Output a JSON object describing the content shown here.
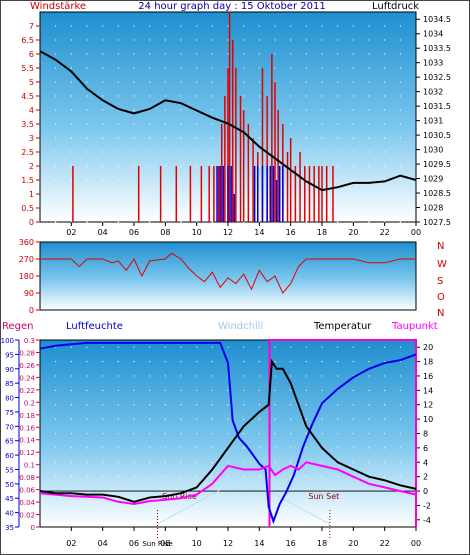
{
  "title": "24 hour graph day : 15 Oktober 2011",
  "chart_data": [
    {
      "type": "line",
      "labels": {
        "left": "Windstärke",
        "right": "Luftdruck"
      },
      "x_ticks": [
        "02",
        "04",
        "06",
        "08",
        "10",
        "12",
        "14",
        "16",
        "18",
        "20",
        "22",
        "00"
      ],
      "x_range_hours": [
        0,
        24
      ],
      "y_left": {
        "ticks": [
          "0",
          "0.5",
          "1",
          "1.5",
          "2",
          "2.5",
          "3",
          "3.5",
          "4",
          "4.5",
          "5",
          "5.5",
          "6",
          "6.5",
          "7"
        ],
        "range": [
          0,
          7.5
        ]
      },
      "y_right": {
        "ticks": [
          "1027.5",
          "1028",
          "1028.5",
          "1029",
          "1029.5",
          "1030",
          "1030.5",
          "1031",
          "1031.5",
          "1032",
          "1032.5",
          "1033",
          "1033.5",
          "1034",
          "1034.5"
        ],
        "range": [
          1027.5,
          1034.75
        ]
      },
      "series": [
        {
          "name": "Luftdruck",
          "color": "#000000",
          "axis": "right",
          "points": [
            [
              0,
              1033.4
            ],
            [
              1,
              1033.1
            ],
            [
              2,
              1032.7
            ],
            [
              3,
              1032.1
            ],
            [
              4,
              1031.7
            ],
            [
              5,
              1031.4
            ],
            [
              6,
              1031.25
            ],
            [
              7,
              1031.4
            ],
            [
              8,
              1031.7
            ],
            [
              9,
              1031.6
            ],
            [
              10,
              1031.35
            ],
            [
              11,
              1031.1
            ],
            [
              12,
              1030.9
            ],
            [
              13,
              1030.6
            ],
            [
              14,
              1030.1
            ],
            [
              15,
              1029.7
            ],
            [
              16,
              1029.3
            ],
            [
              17,
              1028.9
            ],
            [
              18,
              1028.6
            ],
            [
              19,
              1028.7
            ],
            [
              20,
              1028.85
            ],
            [
              21,
              1028.85
            ],
            [
              22,
              1028.9
            ],
            [
              23,
              1029.1
            ],
            [
              24,
              1028.95
            ]
          ]
        },
        {
          "name": "Windböen",
          "color": "#e00000",
          "axis": "left",
          "bars": [
            [
              2.1,
              2
            ],
            [
              6.3,
              2
            ],
            [
              7.7,
              2
            ],
            [
              8.7,
              2
            ],
            [
              9.6,
              2
            ],
            [
              10.3,
              2
            ],
            [
              10.8,
              2
            ],
            [
              11.1,
              2
            ],
            [
              11.4,
              2
            ],
            [
              11.6,
              3.5
            ],
            [
              11.8,
              4.5
            ],
            [
              12.0,
              5.5
            ],
            [
              12.1,
              7.5
            ],
            [
              12.3,
              6.5
            ],
            [
              12.5,
              5.5
            ],
            [
              12.8,
              4.5
            ],
            [
              13.0,
              4
            ],
            [
              13.3,
              3.5
            ],
            [
              13.6,
              3
            ],
            [
              13.9,
              2.5
            ],
            [
              14.2,
              5.5
            ],
            [
              14.5,
              4.5
            ],
            [
              14.8,
              6
            ],
            [
              15.0,
              5
            ],
            [
              15.2,
              4
            ],
            [
              15.5,
              3.5
            ],
            [
              15.8,
              2.5
            ],
            [
              16.0,
              3
            ],
            [
              16.3,
              2
            ],
            [
              16.6,
              2.5
            ],
            [
              16.9,
              2
            ],
            [
              17.2,
              2
            ],
            [
              17.5,
              2
            ],
            [
              17.8,
              2
            ],
            [
              18.0,
              2
            ],
            [
              18.3,
              2
            ],
            [
              18.7,
              2
            ]
          ]
        },
        {
          "name": "Wind",
          "color": "#0000dd",
          "axis": "left",
          "bars": [
            [
              11.3,
              2
            ],
            [
              11.5,
              2
            ],
            [
              11.7,
              2
            ],
            [
              12.0,
              2
            ],
            [
              12.2,
              2
            ],
            [
              12.4,
              1
            ],
            [
              13.7,
              2
            ],
            [
              13.9,
              2
            ],
            [
              14.2,
              2
            ],
            [
              14.5,
              2
            ],
            [
              14.7,
              2
            ],
            [
              14.9,
              2
            ],
            [
              15.1,
              1.5
            ],
            [
              15.3,
              2
            ],
            [
              15.5,
              2
            ]
          ]
        }
      ]
    },
    {
      "type": "line",
      "labels": {
        "compass": [
          "N",
          "W",
          "S",
          "O",
          "N"
        ]
      },
      "y_left": {
        "ticks": [
          "0",
          "90",
          "180",
          "270",
          "360"
        ],
        "range": [
          0,
          360
        ]
      },
      "series": [
        {
          "name": "Windrichtung",
          "color": "#e00000",
          "points": [
            [
              0,
              270
            ],
            [
              1,
              270
            ],
            [
              2,
              270
            ],
            [
              2.5,
              230
            ],
            [
              3,
              270
            ],
            [
              4,
              270
            ],
            [
              4.6,
              250
            ],
            [
              5,
              260
            ],
            [
              5.5,
              210
            ],
            [
              6,
              270
            ],
            [
              6.5,
              180
            ],
            [
              7,
              260
            ],
            [
              8,
              270
            ],
            [
              8.4,
              300
            ],
            [
              9,
              270
            ],
            [
              9.5,
              220
            ],
            [
              10,
              180
            ],
            [
              10.5,
              150
            ],
            [
              11,
              200
            ],
            [
              11.5,
              120
            ],
            [
              12,
              170
            ],
            [
              12.5,
              140
            ],
            [
              13,
              190
            ],
            [
              13.5,
              110
            ],
            [
              14,
              210
            ],
            [
              14.5,
              150
            ],
            [
              15,
              180
            ],
            [
              15.5,
              90
            ],
            [
              16,
              140
            ],
            [
              16.5,
              230
            ],
            [
              17,
              270
            ],
            [
              18,
              270
            ],
            [
              19,
              270
            ],
            [
              20,
              270
            ],
            [
              21,
              250
            ],
            [
              22,
              250
            ],
            [
              23,
              270
            ],
            [
              24,
              270
            ]
          ]
        }
      ]
    },
    {
      "type": "line",
      "labels": {
        "regen": "Regen",
        "feuchte": "Luftfeuchte",
        "windchill": "Windchill",
        "temperatur": "Temperatur",
        "taupunkt": "Taupunkt",
        "sunrise": "Sun Rise",
        "sunset": "Sun Set"
      },
      "y_humidity": {
        "ticks": [
          "35",
          "40",
          "45",
          "50",
          "55",
          "60",
          "65",
          "70",
          "75",
          "80",
          "85",
          "90",
          "95",
          "100"
        ],
        "range": [
          35,
          100
        ]
      },
      "y_rain": {
        "ticks": [
          "0",
          "0.02",
          "0.04",
          "0.06",
          "0.08",
          "0.1",
          "0.12",
          "0.14",
          "0.16",
          "0.18",
          "0.2",
          "0.22",
          "0.24",
          "0.26",
          "0.28",
          "0.3"
        ],
        "range": [
          0,
          0.3
        ]
      },
      "y_temp": {
        "ticks": [
          "-4",
          "-2",
          "0",
          "2",
          "4",
          "6",
          "8",
          "10",
          "12",
          "14",
          "16",
          "18",
          "20"
        ],
        "range": [
          -5,
          21
        ]
      },
      "sun_rise_hour": 7.5,
      "sun_set_hour": 18.5,
      "series": [
        {
          "name": "Luftfeuchte",
          "color": "#0000ee",
          "axis": "humidity",
          "points": [
            [
              0,
              97
            ],
            [
              1,
              98
            ],
            [
              2,
              98.5
            ],
            [
              3,
              99
            ],
            [
              4,
              99
            ],
            [
              6,
              99
            ],
            [
              8,
              99
            ],
            [
              10,
              99
            ],
            [
              11,
              99
            ],
            [
              11.5,
              99
            ],
            [
              12,
              92
            ],
            [
              12.3,
              72
            ],
            [
              12.7,
              66
            ],
            [
              13.2,
              63
            ],
            [
              13.6,
              60
            ],
            [
              14,
              57
            ],
            [
              14.4,
              55
            ],
            [
              14.6,
              42
            ],
            [
              14.9,
              37
            ],
            [
              15.3,
              43
            ],
            [
              15.7,
              47
            ],
            [
              16.2,
              53
            ],
            [
              16.8,
              63
            ],
            [
              17.4,
              71
            ],
            [
              18,
              78
            ],
            [
              19,
              83
            ],
            [
              20,
              87
            ],
            [
              21,
              90
            ],
            [
              22,
              92
            ],
            [
              23,
              93
            ],
            [
              24,
              95
            ]
          ]
        },
        {
          "name": "Temperatur",
          "color": "#000000",
          "axis": "temp",
          "points": [
            [
              0,
              0
            ],
            [
              1,
              -0.3
            ],
            [
              2,
              -0.3
            ],
            [
              3,
              -0.5
            ],
            [
              4,
              -0.5
            ],
            [
              5,
              -0.8
            ],
            [
              6,
              -1.5
            ],
            [
              7,
              -0.9
            ],
            [
              8,
              -0.7
            ],
            [
              9,
              -0.3
            ],
            [
              10,
              0.5
            ],
            [
              11,
              3
            ],
            [
              12,
              6
            ],
            [
              13,
              9
            ],
            [
              14,
              11
            ],
            [
              14.6,
              12
            ],
            [
              14.8,
              18
            ],
            [
              15.1,
              17
            ],
            [
              15.5,
              17
            ],
            [
              16,
              15
            ],
            [
              16.5,
              12
            ],
            [
              17,
              9
            ],
            [
              18,
              6
            ],
            [
              19,
              4
            ],
            [
              20,
              3
            ],
            [
              21,
              2
            ],
            [
              22,
              1.5
            ],
            [
              23,
              0.8
            ],
            [
              24,
              0.3
            ]
          ]
        },
        {
          "name": "Taupunkt",
          "color": "#ff00ff",
          "axis": "temp",
          "points": [
            [
              0,
              -0.3
            ],
            [
              1,
              -0.5
            ],
            [
              2,
              -0.7
            ],
            [
              3,
              -0.8
            ],
            [
              4,
              -0.9
            ],
            [
              5,
              -1.5
            ],
            [
              6,
              -1.8
            ],
            [
              7,
              -1.4
            ],
            [
              8,
              -1.2
            ],
            [
              9,
              -1
            ],
            [
              10,
              -0.5
            ],
            [
              11,
              1
            ],
            [
              12,
              3.5
            ],
            [
              13,
              3
            ],
            [
              14,
              3
            ],
            [
              14.6,
              3.5
            ],
            [
              15,
              2.2
            ],
            [
              15.5,
              3
            ],
            [
              16,
              3.5
            ],
            [
              16.5,
              3
            ],
            [
              17,
              4
            ],
            [
              18,
              3.5
            ],
            [
              19,
              3
            ],
            [
              20,
              2
            ],
            [
              21,
              1
            ],
            [
              22,
              0.5
            ],
            [
              23,
              0
            ],
            [
              24,
              -0.5
            ]
          ]
        }
      ],
      "regen": [
        [
          14.65,
          0
        ],
        [
          14.65,
          0.3
        ],
        [
          24,
          0.3
        ],
        [
          24,
          0
        ]
      ]
    }
  ]
}
